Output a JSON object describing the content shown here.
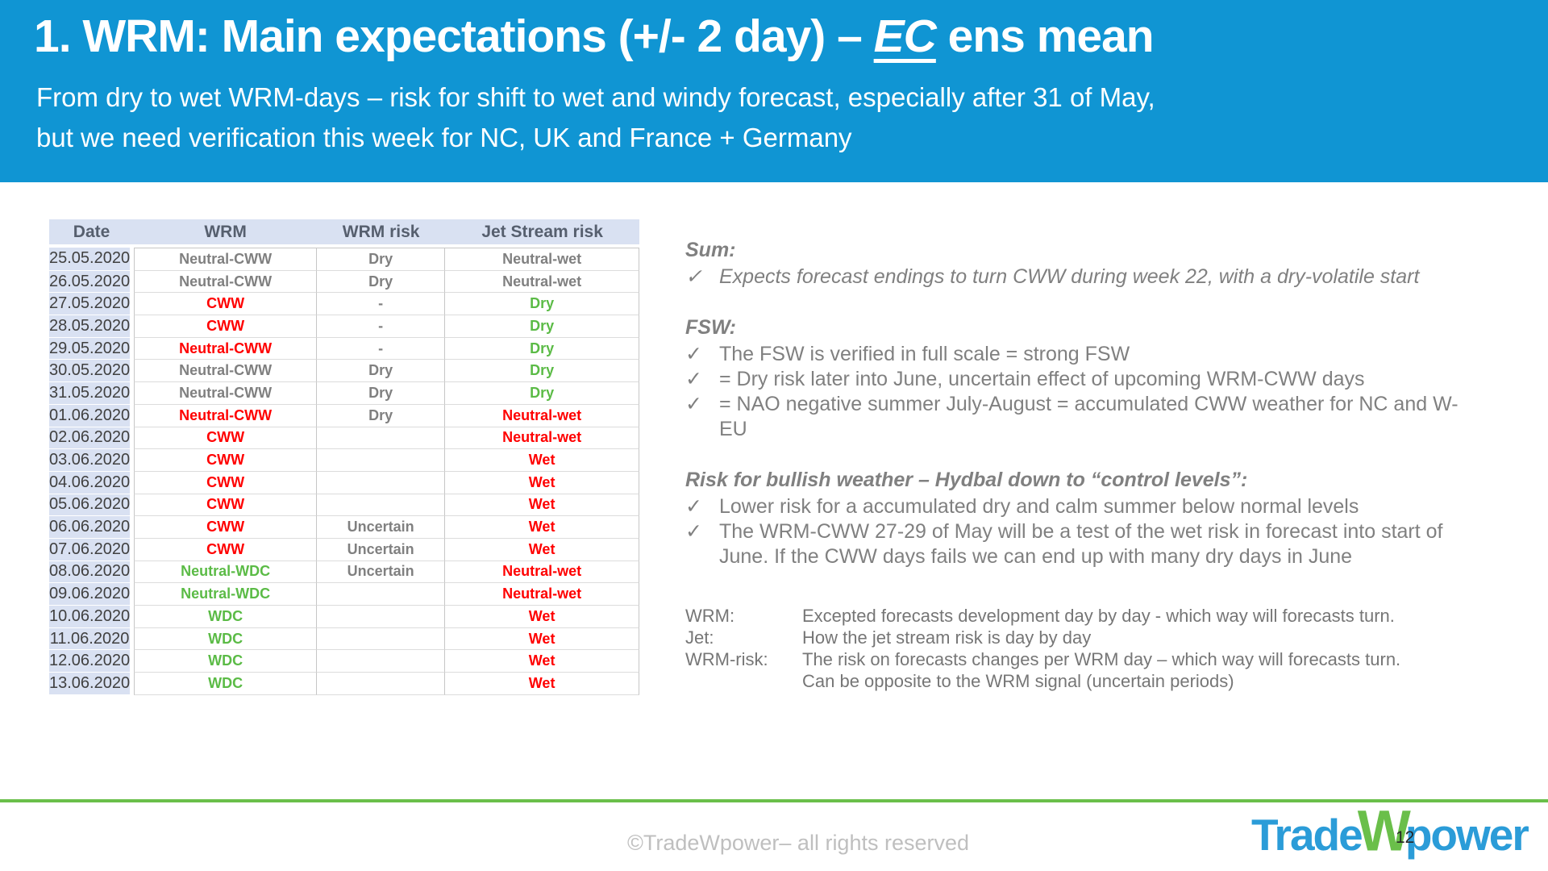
{
  "header": {
    "title_prefix": "1. WRM: Main expectations (+/- 2 day) – ",
    "title_em": "EC",
    "title_suffix": " ens mean",
    "subtitle": "From dry to wet WRM-days – risk for shift to wet and windy forecast, especially after 31 of May,\nbut we need verification this week for NC, UK and France + Germany"
  },
  "table": {
    "columns": [
      "Date",
      "WRM",
      "WRM risk",
      "Jet Stream risk"
    ],
    "rows": [
      {
        "date": "25.05.2020",
        "wrm": [
          "Neutral-CWW",
          "gray"
        ],
        "wrm_risk": [
          "Dry",
          "gray"
        ],
        "jet": [
          "Neutral-wet",
          "gray"
        ]
      },
      {
        "date": "26.05.2020",
        "wrm": [
          "Neutral-CWW",
          "gray"
        ],
        "wrm_risk": [
          "Dry",
          "gray"
        ],
        "jet": [
          "Neutral-wet",
          "gray"
        ]
      },
      {
        "date": "27.05.2020",
        "wrm": [
          "CWW",
          "red"
        ],
        "wrm_risk": [
          "-",
          "gray"
        ],
        "jet": [
          "Dry",
          "green"
        ]
      },
      {
        "date": "28.05.2020",
        "wrm": [
          "CWW",
          "red"
        ],
        "wrm_risk": [
          "-",
          "gray"
        ],
        "jet": [
          "Dry",
          "green"
        ]
      },
      {
        "date": "29.05.2020",
        "wrm": [
          "Neutral-CWW",
          "red"
        ],
        "wrm_risk": [
          "-",
          "gray"
        ],
        "jet": [
          "Dry",
          "green"
        ]
      },
      {
        "date": "30.05.2020",
        "wrm": [
          "Neutral-CWW",
          "gray"
        ],
        "wrm_risk": [
          "Dry",
          "gray"
        ],
        "jet": [
          "Dry",
          "green"
        ]
      },
      {
        "date": "31.05.2020",
        "wrm": [
          "Neutral-CWW",
          "gray"
        ],
        "wrm_risk": [
          "Dry",
          "gray"
        ],
        "jet": [
          "Dry",
          "green"
        ]
      },
      {
        "date": "01.06.2020",
        "wrm": [
          "Neutral-CWW",
          "red"
        ],
        "wrm_risk": [
          "Dry",
          "gray"
        ],
        "jet": [
          "Neutral-wet",
          "red"
        ]
      },
      {
        "date": "02.06.2020",
        "wrm": [
          "CWW",
          "red"
        ],
        "wrm_risk": [
          "",
          "gray"
        ],
        "jet": [
          "Neutral-wet",
          "red"
        ]
      },
      {
        "date": "03.06.2020",
        "wrm": [
          "CWW",
          "red"
        ],
        "wrm_risk": [
          "",
          "gray"
        ],
        "jet": [
          "Wet",
          "red"
        ]
      },
      {
        "date": "04.06.2020",
        "wrm": [
          "CWW",
          "red"
        ],
        "wrm_risk": [
          "",
          "gray"
        ],
        "jet": [
          "Wet",
          "red"
        ]
      },
      {
        "date": "05.06.2020",
        "wrm": [
          "CWW",
          "red"
        ],
        "wrm_risk": [
          "",
          "gray"
        ],
        "jet": [
          "Wet",
          "red"
        ]
      },
      {
        "date": "06.06.2020",
        "wrm": [
          "CWW",
          "red"
        ],
        "wrm_risk": [
          "Uncertain",
          "gray"
        ],
        "jet": [
          "Wet",
          "red"
        ]
      },
      {
        "date": "07.06.2020",
        "wrm": [
          "CWW",
          "red"
        ],
        "wrm_risk": [
          "Uncertain",
          "gray"
        ],
        "jet": [
          "Wet",
          "red"
        ]
      },
      {
        "date": "08.06.2020",
        "wrm": [
          "Neutral-WDC",
          "green"
        ],
        "wrm_risk": [
          "Uncertain",
          "gray"
        ],
        "jet": [
          "Neutral-wet",
          "red"
        ]
      },
      {
        "date": "09.06.2020",
        "wrm": [
          "Neutral-WDC",
          "green"
        ],
        "wrm_risk": [
          "",
          "gray"
        ],
        "jet": [
          "Neutral-wet",
          "red"
        ]
      },
      {
        "date": "10.06.2020",
        "wrm": [
          "WDC",
          "green"
        ],
        "wrm_risk": [
          "",
          "gray"
        ],
        "jet": [
          "Wet",
          "red"
        ]
      },
      {
        "date": "11.06.2020",
        "wrm": [
          "WDC",
          "green"
        ],
        "wrm_risk": [
          "",
          "gray"
        ],
        "jet": [
          "Wet",
          "red"
        ]
      },
      {
        "date": "12.06.2020",
        "wrm": [
          "WDC",
          "green"
        ],
        "wrm_risk": [
          "",
          "gray"
        ],
        "jet": [
          "Wet",
          "red"
        ]
      },
      {
        "date": "13.06.2020",
        "wrm": [
          "WDC",
          "green"
        ],
        "wrm_risk": [
          "",
          "gray"
        ],
        "jet": [
          "Wet",
          "red"
        ]
      }
    ]
  },
  "notes": {
    "check_glyph": "✓",
    "sections": [
      {
        "heading": "Sum:",
        "items": [
          {
            "text": "Expects forecast endings to turn CWW during week 22, with a dry-volatile start",
            "italic": true
          }
        ]
      },
      {
        "heading": "FSW:",
        "items": [
          {
            "text": "The FSW is verified in full scale = strong FSW",
            "italic": false
          },
          {
            "text": "= Dry risk later into June, uncertain effect of upcoming WRM-CWW days",
            "italic": false
          },
          {
            "text": "= NAO negative summer July-August = accumulated CWW weather for NC and W-\nEU",
            "italic": false
          }
        ]
      },
      {
        "heading": "Risk for bullish weather – Hydbal down to “control levels”:",
        "items": [
          {
            "text": "Lower risk for a accumulated dry and calm summer below normal levels",
            "italic": false
          },
          {
            "text": "The WRM-CWW 27-29 of May will be a test of the wet risk in forecast into start of\nJune. If the CWW days fails we can end up with many dry days in June",
            "italic": false
          }
        ]
      }
    ],
    "definitions": [
      {
        "term": "WRM:",
        "desc": "Excepted forecasts development day by day - which way will forecasts turn."
      },
      {
        "term": "Jet:",
        "desc": "How the jet stream risk is day by day"
      },
      {
        "term": "WRM-risk:",
        "desc": "The risk on forecasts changes per WRM day – which way will forecasts turn.\nCan be opposite to the WRM signal (uncertain periods)"
      }
    ]
  },
  "footer": {
    "copyright": "©TradeWpower– all rights reserved",
    "page_number": "12",
    "logo": {
      "part1": "Trade",
      "part2": "W",
      "part3": "power"
    }
  },
  "colors": {
    "header_bg": "#1095D3",
    "table_head_bg": "#D9E1F2",
    "gray": "#808080",
    "red": "#FF0000",
    "green": "#5BBB46",
    "footer_line": "#6ABF4A",
    "logo_blue": "#2B9CD8",
    "logo_green": "#6ABF4A"
  }
}
